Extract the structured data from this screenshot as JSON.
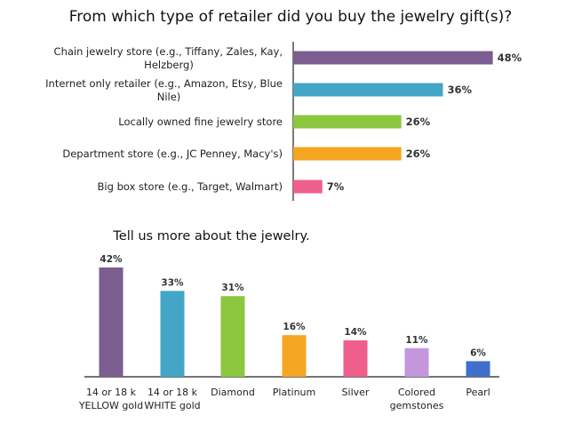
{
  "chart_data": [
    {
      "type": "bar",
      "orientation": "horizontal",
      "title": "From which type of retailer did you buy the jewelry gift(s)?",
      "categories": [
        [
          "Chain jewelry store (e.g., Tiffany, Zales, Kay,",
          "Helzberg)"
        ],
        [
          "Internet only retailer (e.g., Amazon, Etsy, Blue",
          "Nile)"
        ],
        [
          "Locally owned fine jewelry store"
        ],
        [
          "Department store (e.g., JC Penney, Macy's)"
        ],
        [
          "Big box store (e.g., Target, Walmart)"
        ]
      ],
      "values": [
        48,
        36,
        26,
        26,
        7
      ],
      "value_labels": [
        "48%",
        "36%",
        "26%",
        "26%",
        "7%"
      ],
      "colors": [
        "#7b5e8f",
        "#43a6c6",
        "#8dc63f",
        "#f4a623",
        "#ef5f8b"
      ],
      "xlim": [
        0,
        50
      ],
      "grid": false,
      "legend": "none"
    },
    {
      "type": "bar",
      "orientation": "vertical",
      "title": "Tell us more about the jewelry.",
      "categories": [
        [
          "14 or 18 k",
          "YELLOW gold"
        ],
        [
          "14 or 18 k",
          "WHITE gold"
        ],
        [
          "Diamond"
        ],
        [
          "Platinum"
        ],
        [
          "Silver"
        ],
        [
          "Colored",
          "gemstones"
        ],
        [
          "Pearl"
        ]
      ],
      "values": [
        42,
        33,
        31,
        16,
        14,
        11,
        6
      ],
      "value_labels": [
        "42%",
        "33%",
        "31%",
        "16%",
        "14%",
        "11%",
        "6%"
      ],
      "colors": [
        "#7b5e8f",
        "#43a6c6",
        "#8dc63f",
        "#f4a623",
        "#ef5f8b",
        "#c497dd",
        "#3e6fcb"
      ],
      "ylim": [
        0,
        42
      ],
      "grid": false,
      "legend": "none"
    }
  ]
}
